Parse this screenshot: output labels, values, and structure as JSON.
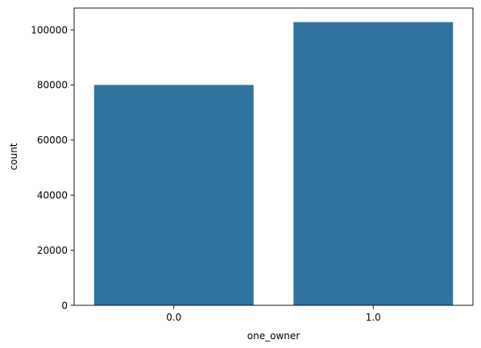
{
  "chart_data": {
    "type": "bar",
    "title": "",
    "xlabel": "one_owner",
    "ylabel": "count",
    "categories": [
      "0.0",
      "1.0"
    ],
    "values": [
      80000,
      102800
    ],
    "ylim": [
      0,
      107900
    ],
    "yticks": [
      0,
      20000,
      40000,
      60000,
      80000,
      100000
    ],
    "ytick_labels": [
      "0",
      "20000",
      "40000",
      "60000",
      "80000",
      "100000"
    ],
    "bar_color": "#3274a1",
    "grid": false,
    "legend": "none"
  }
}
